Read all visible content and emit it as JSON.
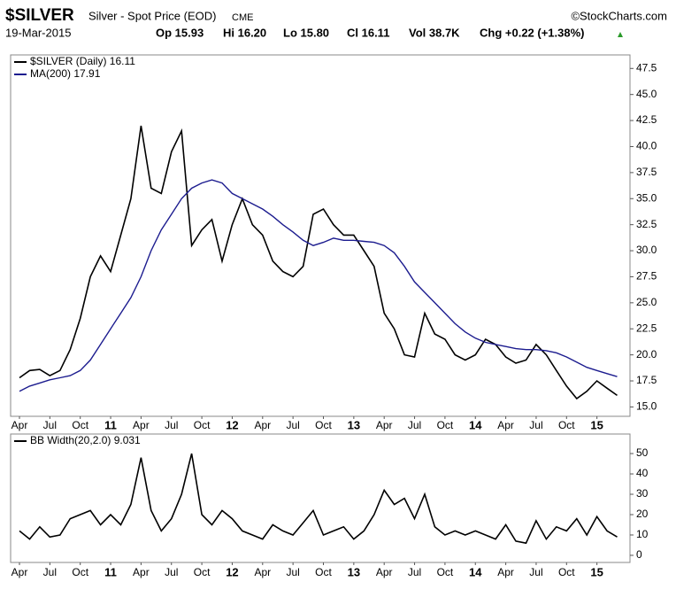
{
  "header": {
    "symbol": "$SILVER",
    "name": "Silver - Spot Price (EOD)",
    "exchange": "CME",
    "source": "©StockCharts.com",
    "date": "19-Mar-2015",
    "open": "Op 15.93",
    "high": "Hi 16.20",
    "low": "Lo 15.80",
    "close": "Cl 16.11",
    "volume": "Vol 38.7K",
    "change": "Chg +0.22 (+1.38%)"
  },
  "chart_data": [
    {
      "type": "line",
      "categories": [
        "Apr",
        null,
        null,
        "Jul",
        null,
        null,
        "Oct",
        null,
        null,
        "11",
        null,
        null,
        "Apr",
        null,
        null,
        "Jul",
        null,
        null,
        "Oct",
        null,
        null,
        "12",
        null,
        null,
        "Apr",
        null,
        null,
        "Jul",
        null,
        null,
        "Oct",
        null,
        null,
        "13",
        null,
        null,
        "Apr",
        null,
        null,
        "Jul",
        null,
        null,
        "Oct",
        null,
        null,
        "14",
        null,
        null,
        "Apr",
        null,
        null,
        "Jul",
        null,
        null,
        "Oct",
        null,
        null,
        "15",
        null,
        null
      ],
      "series": [
        {
          "name": "$SILVER (Daily) 16.11",
          "color": "#000000",
          "values": [
            17.8,
            18.5,
            18.6,
            18.0,
            18.5,
            20.5,
            23.5,
            27.5,
            29.5,
            28.0,
            31.5,
            35.0,
            42.0,
            36.0,
            35.5,
            39.5,
            41.5,
            30.5,
            32.0,
            33.0,
            29.0,
            32.5,
            35.0,
            32.5,
            31.5,
            29.0,
            28.0,
            27.5,
            28.5,
            33.5,
            34.0,
            32.5,
            31.5,
            31.5,
            30.0,
            28.5,
            24.0,
            22.5,
            20.0,
            19.8,
            24.0,
            22.0,
            21.5,
            20.0,
            19.5,
            20.0,
            21.5,
            21.0,
            19.8,
            19.2,
            19.5,
            21.0,
            20.0,
            18.5,
            17.0,
            15.8,
            16.5,
            17.5,
            16.8,
            16.11
          ]
        },
        {
          "name": "MA(200) 17.91",
          "color": "#1c1c8f",
          "values": [
            16.5,
            17.0,
            17.3,
            17.6,
            17.8,
            18.0,
            18.5,
            19.5,
            21.0,
            22.5,
            24.0,
            25.5,
            27.5,
            30.0,
            32.0,
            33.5,
            35.0,
            36.0,
            36.5,
            36.8,
            36.5,
            35.5,
            35.0,
            34.5,
            34.0,
            33.3,
            32.5,
            31.8,
            31.0,
            30.5,
            30.8,
            31.2,
            31.0,
            31.0,
            30.9,
            30.8,
            30.5,
            29.8,
            28.5,
            27.0,
            26.0,
            25.0,
            24.0,
            23.0,
            22.2,
            21.6,
            21.2,
            21.0,
            20.8,
            20.6,
            20.5,
            20.5,
            20.4,
            20.2,
            19.8,
            19.3,
            18.8,
            18.5,
            18.2,
            17.91
          ]
        }
      ],
      "ylim": [
        14.1,
        48.8
      ],
      "yticks": [
        {
          "value": 15,
          "label": "15.0"
        },
        17.5,
        {
          "value": 20,
          "label": "20.0"
        },
        22.5,
        {
          "value": 25,
          "label": "25.0"
        },
        27.5,
        {
          "value": 30,
          "label": "30.0"
        },
        32.5,
        {
          "value": 35,
          "label": "35.0"
        },
        37.5,
        {
          "value": 40,
          "label": "40.0"
        },
        42.5,
        {
          "value": 45,
          "label": "45.0"
        },
        47.5
      ]
    },
    {
      "type": "line",
      "categories": [
        "Apr",
        null,
        null,
        "Jul",
        null,
        null,
        "Oct",
        null,
        null,
        "11",
        null,
        null,
        "Apr",
        null,
        null,
        "Jul",
        null,
        null,
        "Oct",
        null,
        null,
        "12",
        null,
        null,
        "Apr",
        null,
        null,
        "Jul",
        null,
        null,
        "Oct",
        null,
        null,
        "13",
        null,
        null,
        "Apr",
        null,
        null,
        "Jul",
        null,
        null,
        "Oct",
        null,
        null,
        "14",
        null,
        null,
        "Apr",
        null,
        null,
        "Jul",
        null,
        null,
        "Oct",
        null,
        null,
        "15",
        null,
        null
      ],
      "series": [
        {
          "name": "BB Width(20,2.0) 9.031",
          "color": "#000000",
          "values": [
            12,
            8,
            14,
            9,
            10,
            18,
            20,
            22,
            15,
            20,
            15,
            25,
            48,
            22,
            12,
            18,
            30,
            50,
            20,
            15,
            22,
            18,
            12,
            10,
            8,
            15,
            12,
            10,
            16,
            22,
            10,
            12,
            14,
            8,
            12,
            20,
            32,
            25,
            28,
            18,
            30,
            14,
            10,
            12,
            10,
            12,
            10,
            8,
            15,
            7,
            6,
            17,
            8,
            14,
            12,
            18,
            10,
            19,
            12,
            9.031
          ]
        }
      ],
      "ylim": [
        -3.5,
        59.6
      ],
      "yticks": [
        0,
        10,
        20,
        30,
        40,
        50
      ]
    }
  ]
}
